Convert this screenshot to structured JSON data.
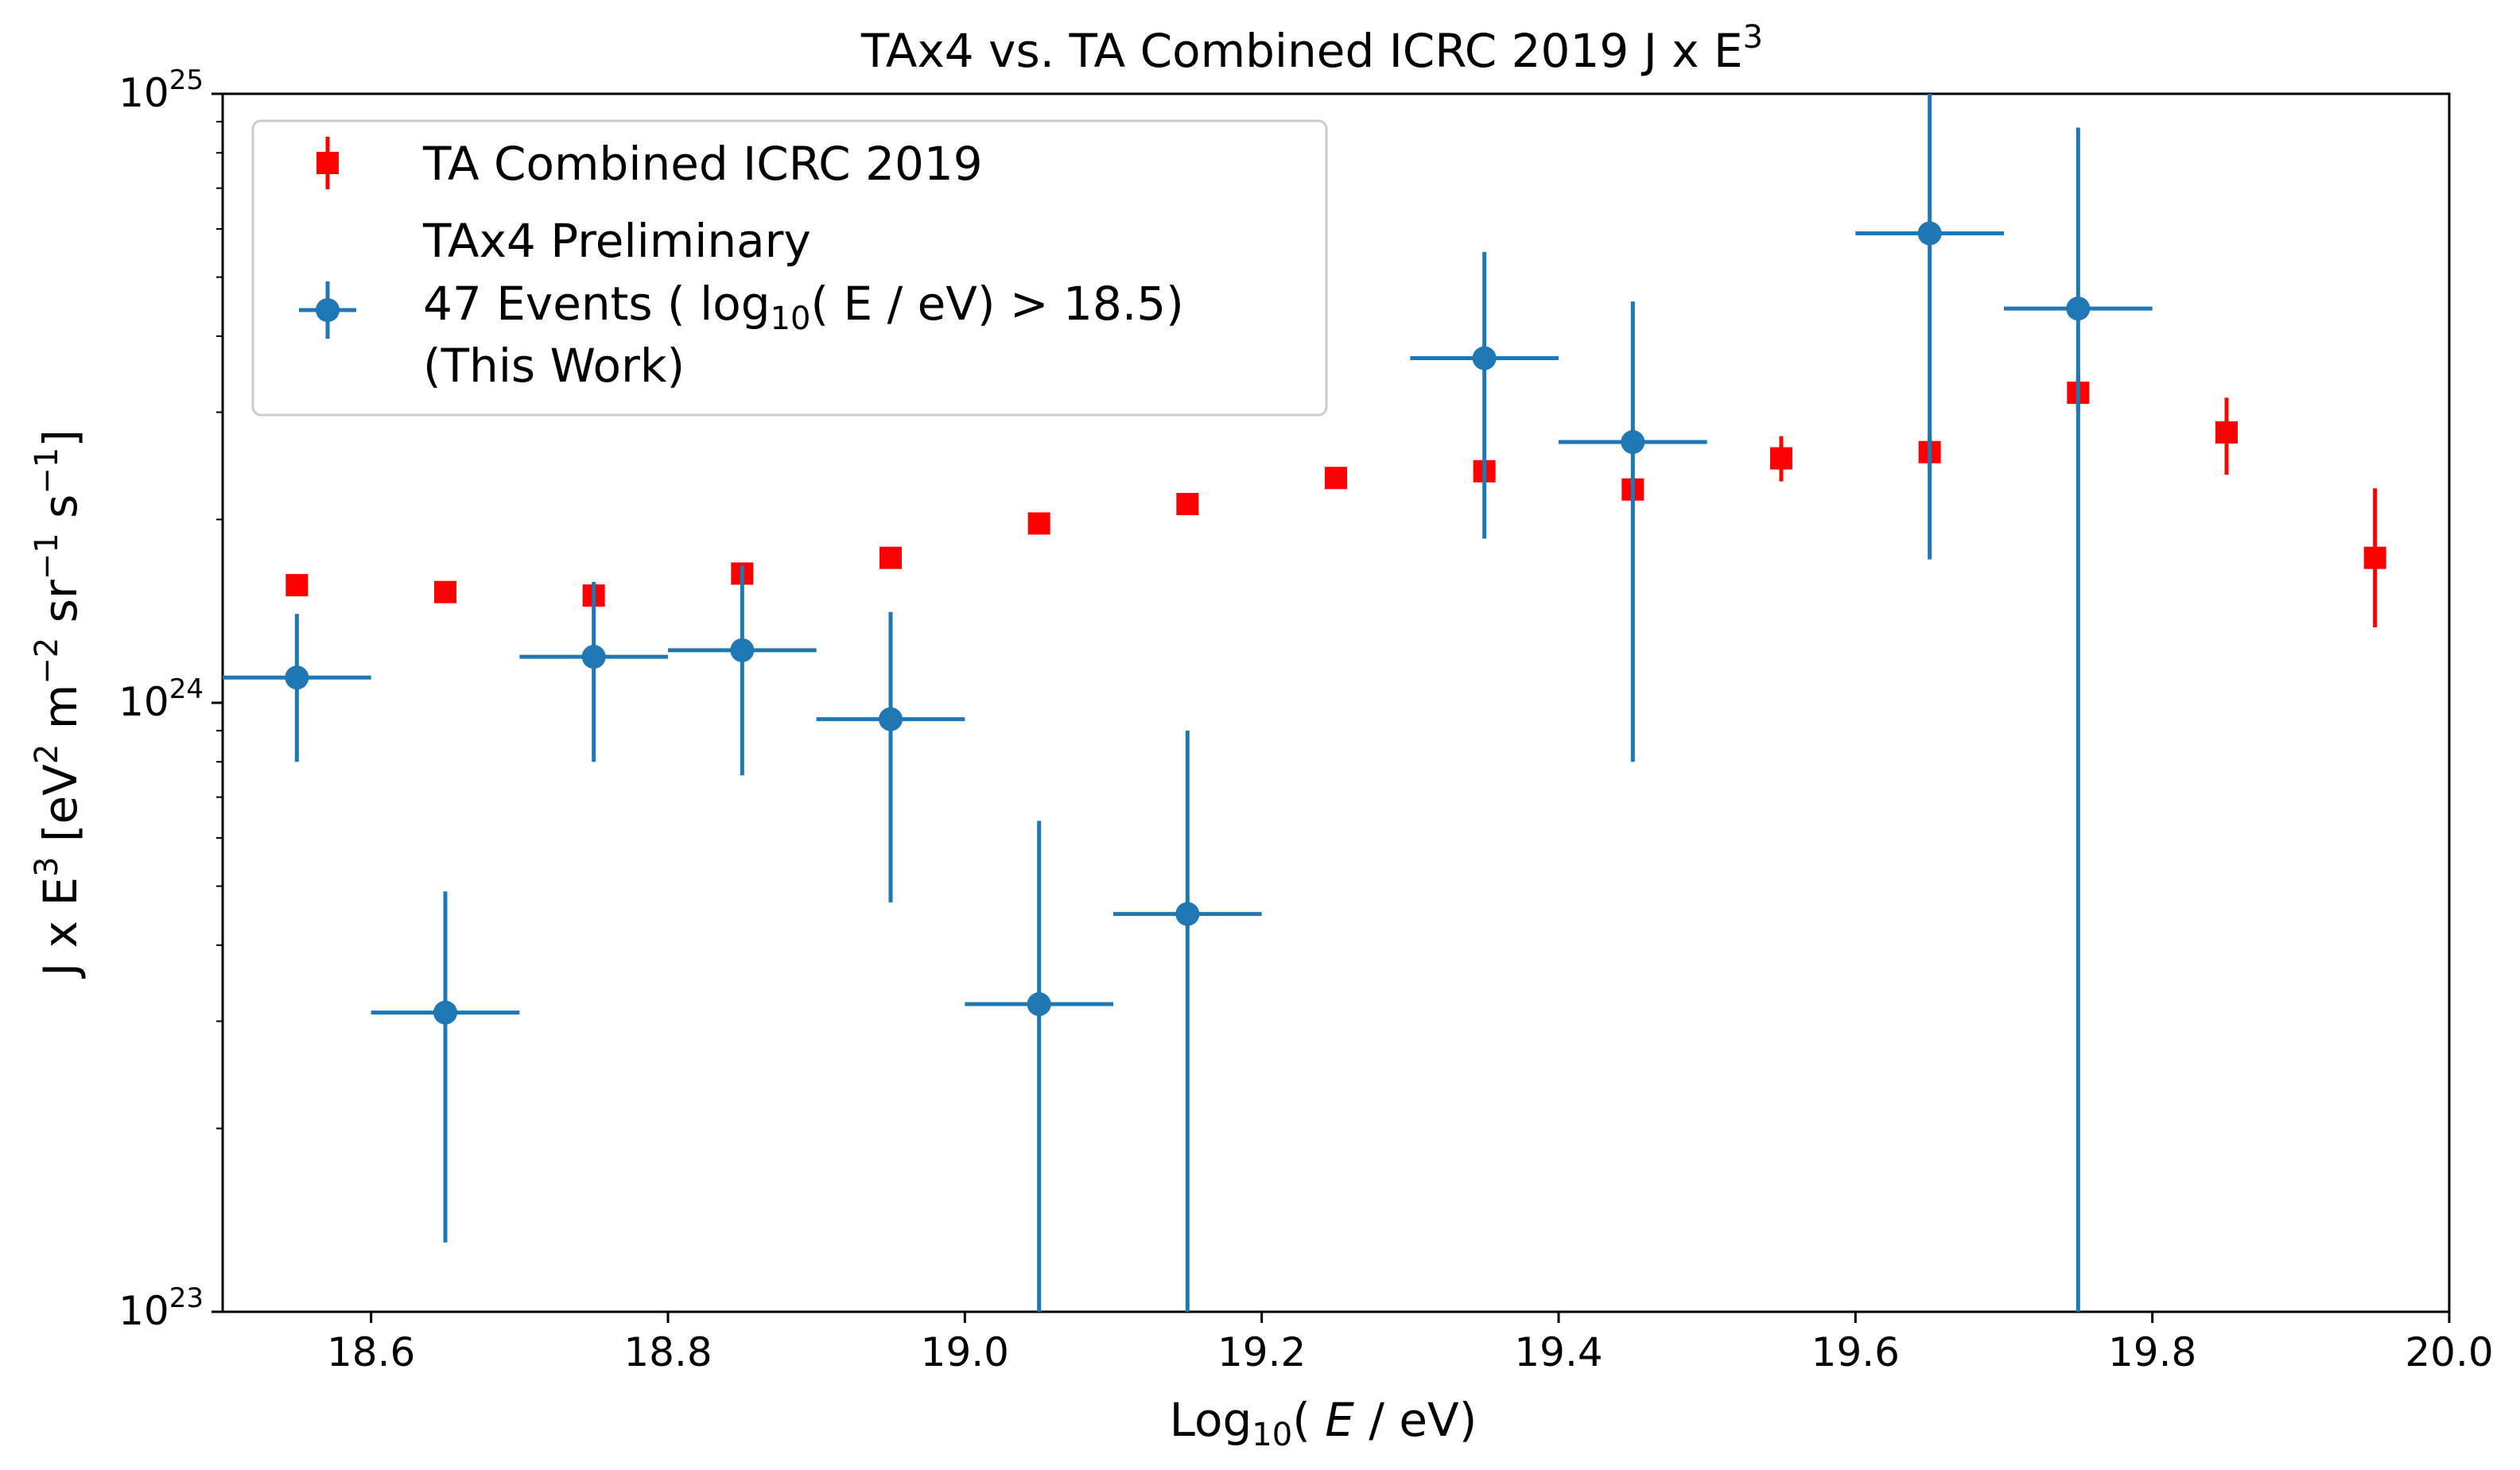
{
  "chart_data": {
    "type": "scatter",
    "title": {
      "main": "TAx4 vs. TA Combined ICRC 2019 J x E",
      "sup": "3"
    },
    "xlabel": {
      "pre": "Log",
      "sub": "10",
      "mid": "( ",
      "italic": "E",
      "post": " / eV)"
    },
    "ylabel": {
      "a": "J x E",
      "a_sup": "3",
      "b": " [eV",
      "b_sup": "2",
      "c": " m",
      "c_sup": "−2",
      "d": " sr",
      "d_sup": "−1",
      "e": " s",
      "e_sup": "−1",
      "f": "]"
    },
    "x_scale": "linear",
    "y_scale": "log",
    "xlim": [
      18.5,
      20.0
    ],
    "ylim": [
      1e+23,
      1e+25
    ],
    "x_ticks": [
      {
        "value": 18.6,
        "label": "18.6"
      },
      {
        "value": 18.8,
        "label": "18.8"
      },
      {
        "value": 19.0,
        "label": "19.0"
      },
      {
        "value": 19.2,
        "label": "19.2"
      },
      {
        "value": 19.4,
        "label": "19.4"
      },
      {
        "value": 19.6,
        "label": "19.6"
      },
      {
        "value": 19.8,
        "label": "19.8"
      },
      {
        "value": 20.0,
        "label": "20.0"
      }
    ],
    "y_ticks": [
      {
        "value": 1e+23,
        "base": "10",
        "exp": "23"
      },
      {
        "value": 1e+24,
        "base": "10",
        "exp": "24"
      },
      {
        "value": 1e+25,
        "base": "10",
        "exp": "25"
      }
    ],
    "grid": false,
    "legend_position": "top-left",
    "series": [
      {
        "name": "TA Combined ICRC 2019",
        "color": "#ff0000",
        "marker": "square",
        "points": [
          {
            "x": 18.55,
            "y": 1.56e+24,
            "ylo": 1.55e+24,
            "yhi": 1.58e+24
          },
          {
            "x": 18.65,
            "y": 1.52e+24,
            "ylo": 1.51e+24,
            "yhi": 1.54e+24
          },
          {
            "x": 18.75,
            "y": 1.5e+24,
            "ylo": 1.49e+24,
            "yhi": 1.52e+24
          },
          {
            "x": 18.85,
            "y": 1.63e+24,
            "ylo": 1.61e+24,
            "yhi": 1.65e+24
          },
          {
            "x": 18.95,
            "y": 1.73e+24,
            "ylo": 1.71e+24,
            "yhi": 1.75e+24
          },
          {
            "x": 19.05,
            "y": 1.97e+24,
            "ylo": 1.94e+24,
            "yhi": 2e+24
          },
          {
            "x": 19.15,
            "y": 2.12e+24,
            "ylo": 2.09e+24,
            "yhi": 2.16e+24
          },
          {
            "x": 19.25,
            "y": 2.34e+24,
            "ylo": 2.29e+24,
            "yhi": 2.39e+24
          },
          {
            "x": 19.35,
            "y": 2.4e+24,
            "ylo": 2.33e+24,
            "yhi": 2.48e+24
          },
          {
            "x": 19.45,
            "y": 2.24e+24,
            "ylo": 2.14e+24,
            "yhi": 2.34e+24
          },
          {
            "x": 19.55,
            "y": 2.52e+24,
            "ylo": 2.31e+24,
            "yhi": 2.74e+24
          },
          {
            "x": 19.65,
            "y": 2.58e+24,
            "ylo": 2.42e+24,
            "yhi": 2.75e+24
          },
          {
            "x": 19.75,
            "y": 3.23e+24,
            "ylo": 3e+24,
            "yhi": 3.46e+24
          },
          {
            "x": 19.85,
            "y": 2.78e+24,
            "ylo": 2.37e+24,
            "yhi": 3.17e+24
          },
          {
            "x": 19.95,
            "y": 1.73e+24,
            "ylo": 1.33e+24,
            "yhi": 2.25e+24
          }
        ]
      },
      {
        "name": "TAx4 Preliminary\n47 Events ( log10( E / eV) > 18.5)\n(This Work)",
        "legend_lines": [
          {
            "text": "TAx4 Preliminary"
          },
          {
            "text": "47 Events ( log",
            "sub": "10",
            "post": "( E / eV) > 18.5)"
          },
          {
            "text": "(This Work)"
          }
        ],
        "color": "#1f77b4",
        "marker": "circle",
        "points": [
          {
            "x": 18.55,
            "y": 1.1e+24,
            "xlo": 18.5,
            "xhi": 18.6,
            "ylo": 8e+23,
            "yhi": 1.4e+24
          },
          {
            "x": 18.65,
            "y": 3.1e+23,
            "xlo": 18.6,
            "xhi": 18.7,
            "ylo": 1.3e+23,
            "yhi": 4.9e+23
          },
          {
            "x": 18.75,
            "y": 1.19e+24,
            "xlo": 18.7,
            "xhi": 18.8,
            "ylo": 8e+23,
            "yhi": 1.58e+24
          },
          {
            "x": 18.85,
            "y": 1.22e+24,
            "xlo": 18.8,
            "xhi": 18.9,
            "ylo": 7.6e+23,
            "yhi": 1.68e+24
          },
          {
            "x": 18.95,
            "y": 9.4e+23,
            "xlo": 18.9,
            "xhi": 19.0,
            "ylo": 4.7e+23,
            "yhi": 1.41e+24
          },
          {
            "x": 19.05,
            "y": 3.2e+23,
            "xlo": 19.0,
            "xhi": 19.1,
            "ylo": 1e+23,
            "yhi": 6.4e+23
          },
          {
            "x": 19.15,
            "y": 4.5e+23,
            "xlo": 19.1,
            "xhi": 19.2,
            "ylo": 1e+23,
            "yhi": 9e+23
          },
          {
            "x": 19.35,
            "y": 3.68e+24,
            "xlo": 19.3,
            "xhi": 19.4,
            "ylo": 1.86e+24,
            "yhi": 5.5e+24
          },
          {
            "x": 19.45,
            "y": 2.68e+24,
            "xlo": 19.4,
            "xhi": 19.5,
            "ylo": 8e+23,
            "yhi": 4.56e+24
          },
          {
            "x": 19.65,
            "y": 5.9e+24,
            "xlo": 19.6,
            "xhi": 19.7,
            "ylo": 1.72e+24,
            "yhi": 1e+25
          },
          {
            "x": 19.75,
            "y": 4.44e+24,
            "xlo": 19.7,
            "xhi": 19.8,
            "ylo": 1e+23,
            "yhi": 8.8e+24
          }
        ]
      }
    ]
  }
}
